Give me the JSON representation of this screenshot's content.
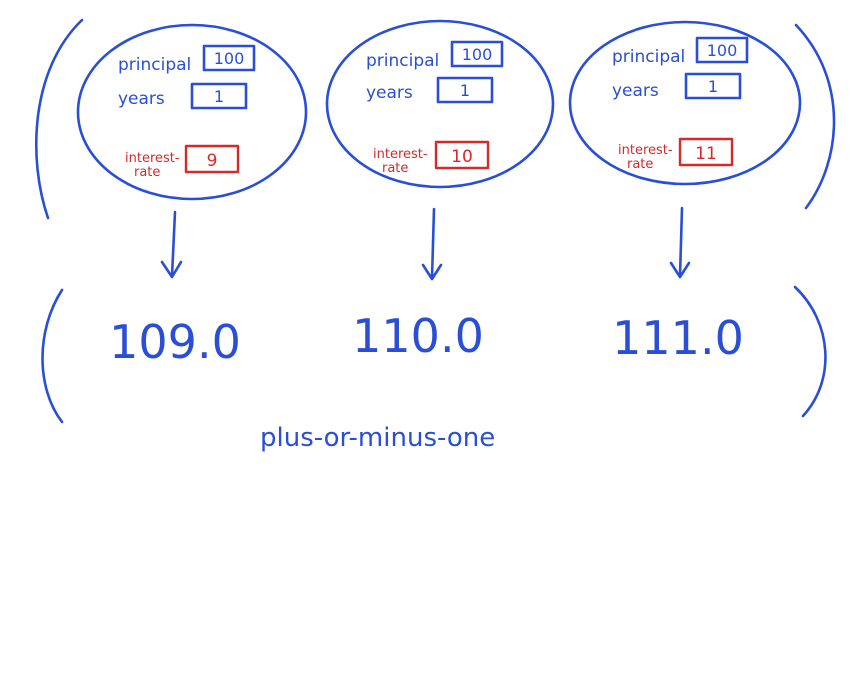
{
  "colors": {
    "ink_blue": "#2a4fd6",
    "ink_red": "#d42a2a"
  },
  "inputs": [
    {
      "principal_label": "principal",
      "principal_value": "100",
      "years_label": "years",
      "years_value": "1",
      "rate_label_1": "interest-",
      "rate_label_2": "rate",
      "rate_value": "9"
    },
    {
      "principal_label": "principal",
      "principal_value": "100",
      "years_label": "years",
      "years_value": "1",
      "rate_label_1": "interest-",
      "rate_label_2": "rate",
      "rate_value": "10"
    },
    {
      "principal_label": "principal",
      "principal_value": "100",
      "years_label": "years",
      "years_value": "1",
      "rate_label_1": "interest-",
      "rate_label_2": "rate",
      "rate_value": "11"
    }
  ],
  "outputs": [
    "109.0",
    "110.0",
    "111.0"
  ],
  "caption": "plus-or-minus-one"
}
